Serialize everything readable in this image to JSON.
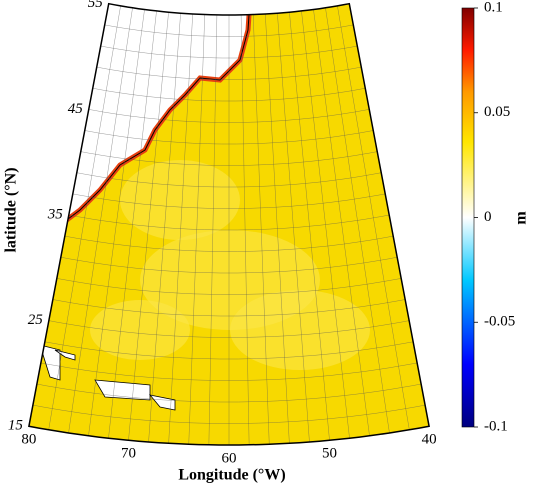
{
  "map": {
    "latitude_label": "latitude (°N)",
    "longitude_label": "Longitude (°W)",
    "latitude_ticks": [
      55,
      45,
      35,
      25,
      15
    ],
    "longitude_ticks": [
      80,
      70,
      60,
      50,
      40
    ],
    "colorbar": {
      "label": "m",
      "lim": [
        -0.1,
        0.1
      ],
      "ticks": [
        0.1,
        0.05,
        0,
        -0.05,
        -0.1
      ]
    }
  }
}
